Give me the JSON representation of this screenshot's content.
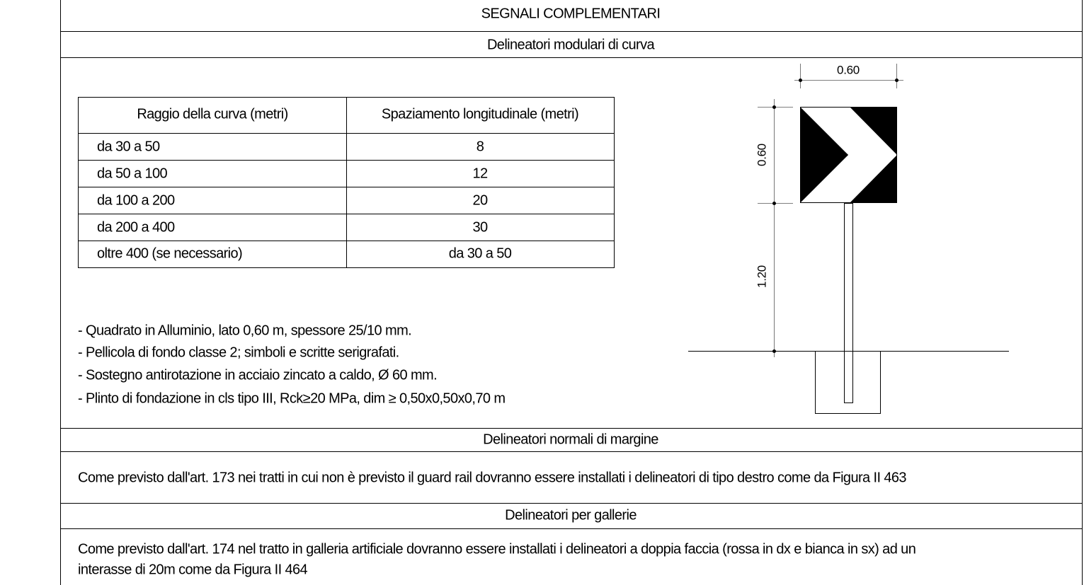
{
  "header": {
    "title": "SEGNALI COMPLEMENTARI"
  },
  "sections": [
    {
      "title": "Delineatori modulari di curva",
      "table": {
        "columns": [
          "Raggio della curva (metri)",
          "Spaziamento longitudinale (metri)"
        ],
        "rows": [
          [
            "da 30 a 50",
            8
          ],
          [
            "da 50 a 100",
            12
          ],
          [
            "da 100 a 200",
            20
          ],
          [
            "da 200 a 400",
            30
          ],
          [
            "oltre 400 (se necessario)",
            "da 30 a 50"
          ]
        ]
      },
      "notes": [
        "- Quadrato in Alluminio, lato 0,60 m, spessore 25/10 mm.",
        "- Pellicola di fondo classe 2; simboli e scritte serigrafati.",
        "- Sostegno antirotazione in acciaio zincato a caldo, Ø 60 mm.",
        "- Plinto di fondazione in cls tipo III, Rck≥20 MPa, dim ≥ 0,50x0,50x0,70 m"
      ],
      "drawing": {
        "width_label": "0.60",
        "height_label": "0.60",
        "post_label": "1.20"
      }
    },
    {
      "title": "Delineatori normali di margine",
      "text": "Come previsto dall'art. 173 nei tratti in cui non è previsto il guard rail dovranno essere installati i delineatori di tipo destro come da Figura II 463"
    },
    {
      "title": "Delineatori per gallerie",
      "text_lines": [
        "Come previsto dall'art. 174 nel tratto in galleria artificiale dovranno essere installati i delineatori a doppia faccia (rossa in dx e bianca in sx) ad un",
        "interasse di 20m come da Figura II 464"
      ]
    }
  ]
}
